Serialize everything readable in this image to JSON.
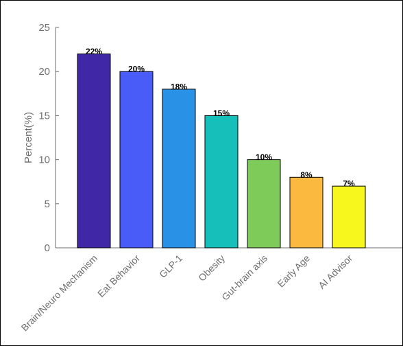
{
  "chart_data": {
    "type": "bar",
    "title": "",
    "xlabel": "",
    "ylabel": "Percent(%)",
    "ylim": [
      0,
      25
    ],
    "yticks": [
      0,
      5,
      10,
      15,
      20,
      25
    ],
    "grid": false,
    "categories": [
      "Brain/Neuro Mechanism",
      "Eat Behavior",
      "GLP-1",
      "Obesity",
      "Gut-brain axis",
      "Early Age",
      "AI Advisor"
    ],
    "values": [
      22,
      20,
      18,
      15,
      10,
      8,
      7
    ],
    "data_labels": [
      "22%",
      "20%",
      "18%",
      "15%",
      "10%",
      "8%",
      "7%"
    ],
    "bar_colors": [
      "#3f27a6",
      "#4a5cf7",
      "#2a92e6",
      "#16bfb9",
      "#7fcb59",
      "#fbb940",
      "#f7f71d"
    ],
    "bar_edge_color": "#000000",
    "axis_color": "#6e6e6e"
  }
}
